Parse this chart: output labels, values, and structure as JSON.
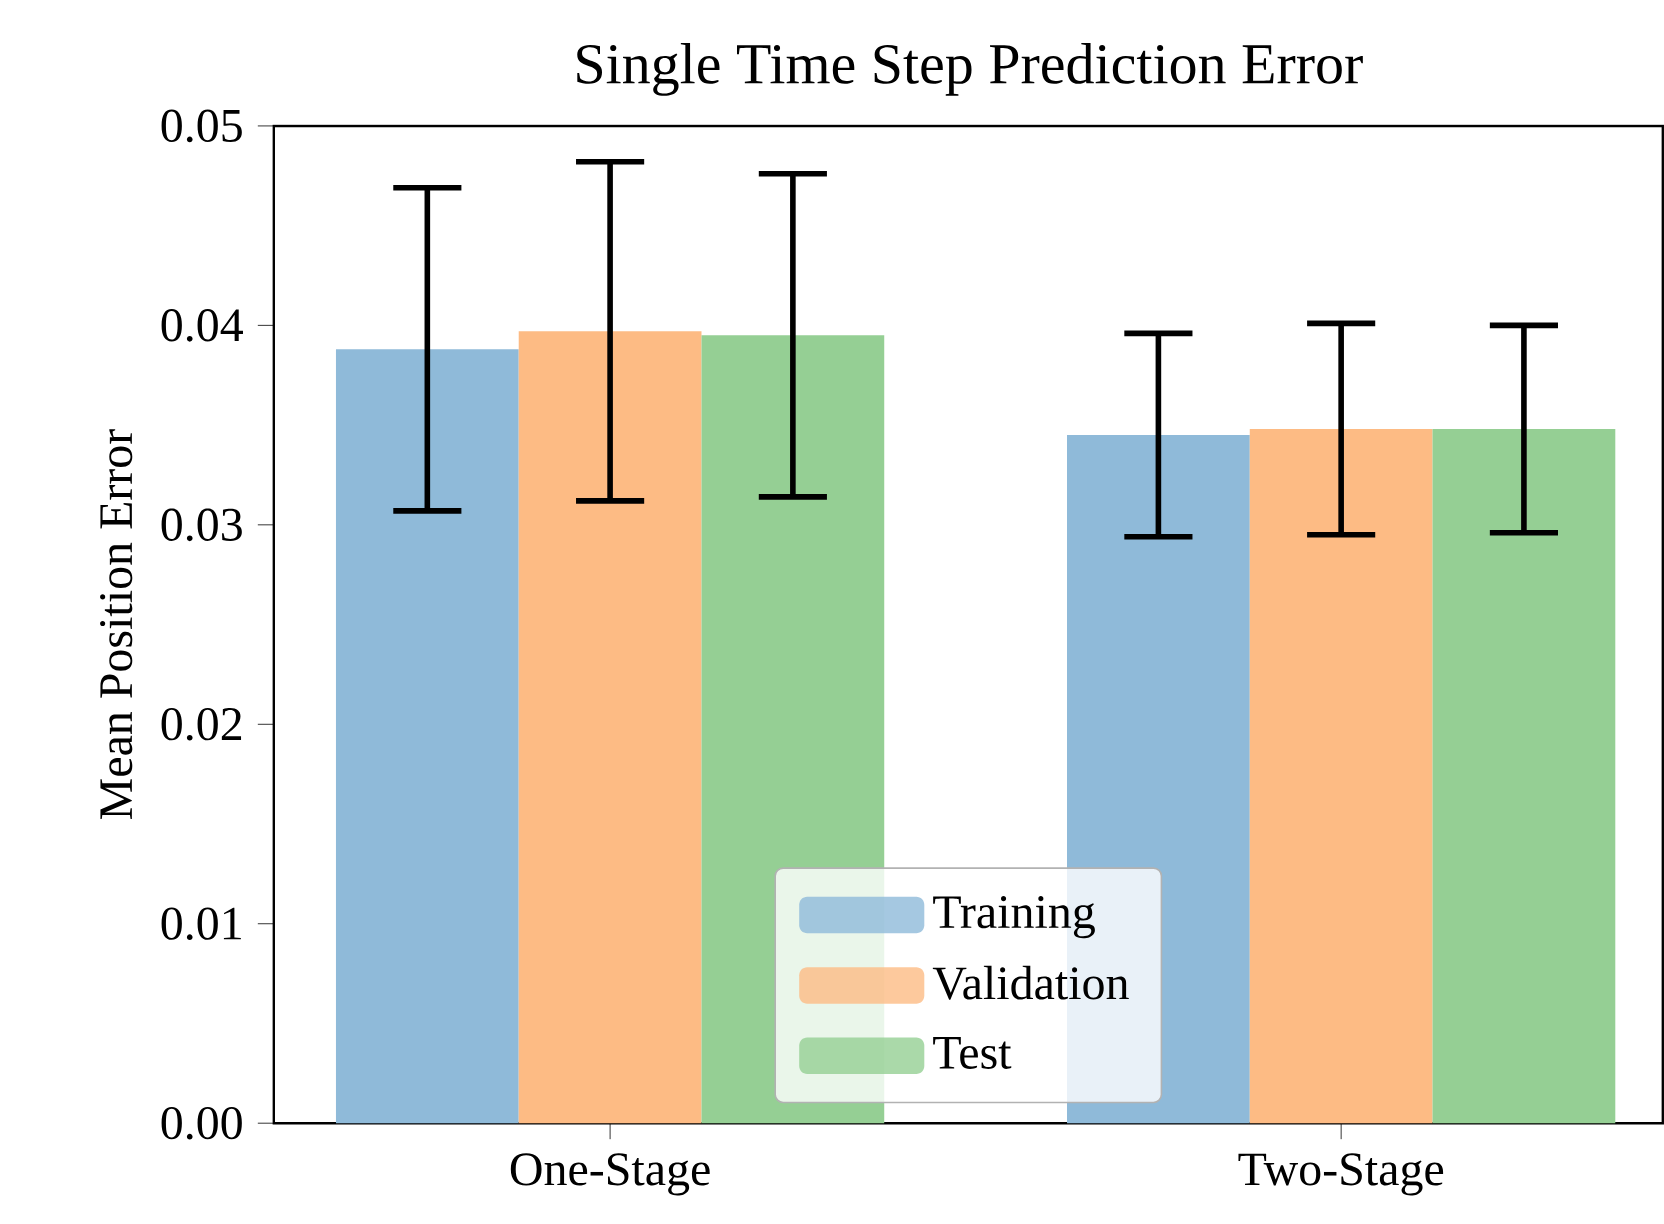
{
  "chart_data": {
    "type": "bar",
    "title": "Single Time Step Prediction Error",
    "ylabel": "Mean Position Error",
    "categories": [
      "One-Stage",
      "Two-Stage"
    ],
    "series": [
      {
        "name": "Training",
        "color": "#8fbad9",
        "values": [
          0.0388,
          0.0345
        ],
        "errors": [
          0.0081,
          0.0051
        ]
      },
      {
        "name": "Validation",
        "color": "#fdbb84",
        "values": [
          0.0397,
          0.0348
        ],
        "errors": [
          0.0085,
          0.0053
        ]
      },
      {
        "name": "Test",
        "color": "#95cf94",
        "values": [
          0.0395,
          0.0348
        ],
        "errors": [
          0.0081,
          0.0052
        ]
      }
    ],
    "ylim": [
      0,
      0.05
    ],
    "yticks": [
      {
        "value": 0,
        "label": "0.00"
      },
      {
        "value": 0.01,
        "label": "0.01"
      },
      {
        "value": 0.02,
        "label": "0.02"
      },
      {
        "value": 0.03,
        "label": "0.03"
      },
      {
        "value": 0.04,
        "label": "0.04"
      },
      {
        "value": 0.05,
        "label": "0.05"
      }
    ],
    "grid": false,
    "legend": "bottom"
  }
}
